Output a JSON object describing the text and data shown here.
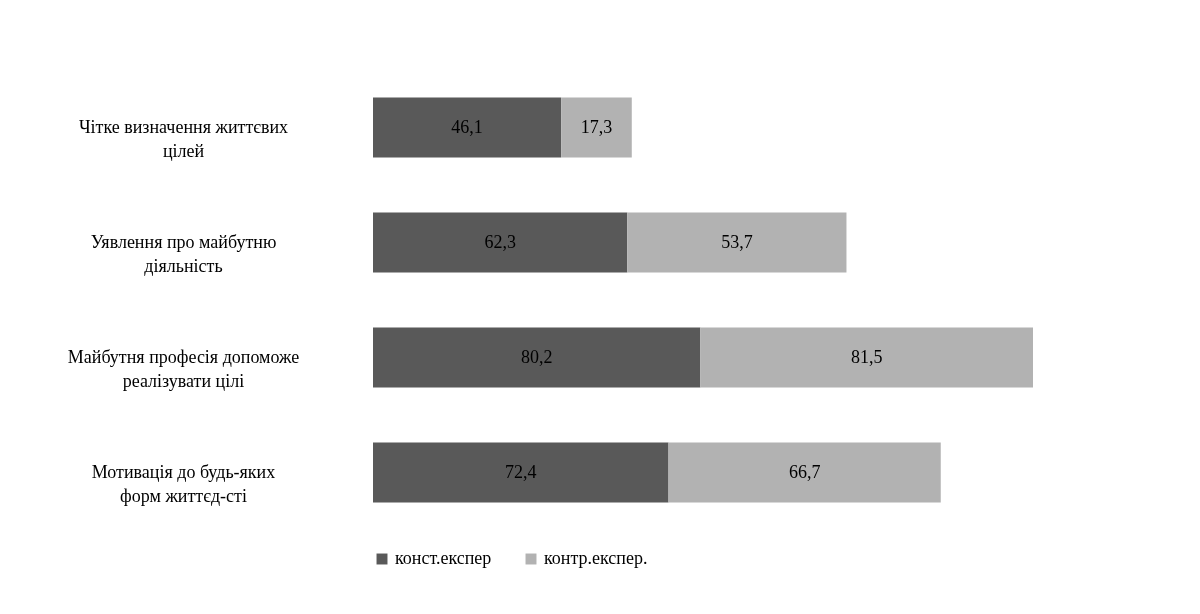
{
  "chart_data": {
    "type": "bar",
    "orientation": "horizontal",
    "stacked": true,
    "legend": "bottom",
    "categories": [
      "Чітке визначення життєвих цілей",
      "Уявлення про майбутню діяльність",
      "Майбутня професія допоможе реалізувати цілі",
      "Мотивація до будь-яких форм життєд-сті"
    ],
    "series": [
      {
        "name": "конст.експер",
        "color": "#595959",
        "values": [
          46.1,
          62.3,
          80.2,
          72.4
        ],
        "value_labels": [
          "46,1",
          "62,3",
          "80,2",
          "72,4"
        ]
      },
      {
        "name": "контр.експер.",
        "color": "#b2b2b2",
        "values": [
          17.3,
          53.7,
          81.5,
          66.7
        ],
        "value_labels": [
          "17,3",
          "53,7",
          "81,5",
          "66,7"
        ]
      }
    ]
  }
}
